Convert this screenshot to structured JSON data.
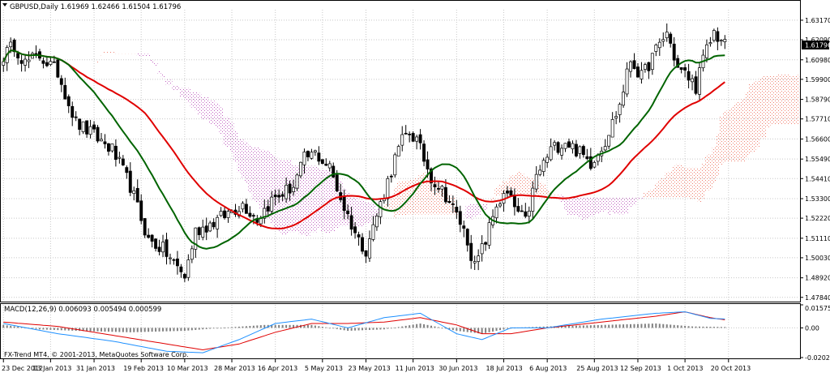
{
  "header": {
    "symbol_line": "GBPUSD,Daily  1.61969 1.62466 1.61504 1.61796"
  },
  "macd": {
    "label": "MACD(12,26,9) 0.006093 0.005494 0.000599"
  },
  "copyright": "FX-Trend MT4, © 2001-2013, MetaQuotes Software Corp.",
  "chart_data": [
    {
      "type": "line",
      "subtype": "candlestick",
      "symbol": "GBPUSD",
      "timeframe": "Daily",
      "ohlc_last": {
        "open": 1.61969,
        "high": 1.62466,
        "low": 1.61504,
        "close": 1.61796
      },
      "current_price_label": "1.61796",
      "y_ticks": [
        "1.63170",
        "1.62090",
        "1.60980",
        "1.59900",
        "1.58790",
        "1.57710",
        "1.56600",
        "1.55490",
        "1.54410",
        "1.53300",
        "1.52220",
        "1.51110",
        "1.50030",
        "1.48920",
        "1.47840"
      ],
      "ylim": [
        1.4765,
        1.6375
      ],
      "x_ticks": [
        "23 Dec 2012",
        "13 Jan 2013",
        "31 Jan 2013",
        "19 Feb 2013",
        "10 Mar 2013",
        "28 Mar 2013",
        "16 Apr 2013",
        "5 May 2013",
        "23 May 2013",
        "11 Jun 2013",
        "30 Jun 2013",
        "18 Jul 2013",
        "6 Aug 2013",
        "25 Aug 2013",
        "12 Sep 2013",
        "1 Oct 2013",
        "20 Oct 2013"
      ],
      "bar_count": 220,
      "price_anchors": [
        [
          0,
          1.612
        ],
        [
          3,
          1.618
        ],
        [
          6,
          1.608
        ],
        [
          10,
          1.612
        ],
        [
          15,
          1.603
        ],
        [
          20,
          1.575
        ],
        [
          25,
          1.568
        ],
        [
          30,
          1.56
        ],
        [
          35,
          1.54
        ],
        [
          40,
          1.51
        ],
        [
          44,
          1.505
        ],
        [
          48,
          1.495
        ],
        [
          50,
          1.49
        ],
        [
          53,
          1.515
        ],
        [
          58,
          1.52
        ],
        [
          62,
          1.525
        ],
        [
          66,
          1.53
        ],
        [
          70,
          1.522
        ],
        [
          74,
          1.532
        ],
        [
          80,
          1.54
        ],
        [
          83,
          1.555
        ],
        [
          86,
          1.558
        ],
        [
          90,
          1.55
        ],
        [
          94,
          1.528
        ],
        [
          98,
          1.51
        ],
        [
          100,
          1.505
        ],
        [
          104,
          1.53
        ],
        [
          108,
          1.555
        ],
        [
          110,
          1.565
        ],
        [
          112,
          1.57
        ],
        [
          114,
          1.565
        ],
        [
          118,
          1.545
        ],
        [
          122,
          1.535
        ],
        [
          126,
          1.52
        ],
        [
          128,
          1.51
        ],
        [
          130,
          1.495
        ],
        [
          133,
          1.51
        ],
        [
          136,
          1.53
        ],
        [
          139,
          1.535
        ],
        [
          142,
          1.525
        ],
        [
          144,
          1.52
        ],
        [
          147,
          1.545
        ],
        [
          151,
          1.56
        ],
        [
          155,
          1.565
        ],
        [
          158,
          1.56
        ],
        [
          162,
          1.553
        ],
        [
          166,
          1.565
        ],
        [
          170,
          1.585
        ],
        [
          173,
          1.61
        ],
        [
          176,
          1.6
        ],
        [
          180,
          1.615
        ],
        [
          183,
          1.625
        ],
        [
          186,
          1.605
        ],
        [
          189,
          1.6
        ],
        [
          191,
          1.595
        ],
        [
          193,
          1.61
        ],
        [
          196,
          1.625
        ],
        [
          199,
          1.618
        ]
      ],
      "indicators": [
        {
          "name": "ma_red",
          "color": "#e00000"
        },
        {
          "name": "ma_green",
          "color": "#006400"
        },
        {
          "name": "ichimoku_bull_cloud",
          "color": "#f08070"
        },
        {
          "name": "ichimoku_bear_cloud",
          "color": "#c060c0"
        }
      ]
    },
    {
      "type": "line",
      "subtype": "macd",
      "params": [
        12,
        26,
        9
      ],
      "values": {
        "macd": 0.006093,
        "signal": 0.005494,
        "histogram": 0.000599
      },
      "y_ticks": [
        "0.015758",
        "0.00",
        "-0.020277"
      ],
      "ylim": [
        -0.020277,
        0.015758
      ],
      "series": [
        {
          "name": "MACD",
          "color": "#1e90ff"
        },
        {
          "name": "Signal",
          "color": "#e00000"
        },
        {
          "name": "Histogram",
          "color": "#808080"
        }
      ],
      "hist_anchors": [
        [
          0,
          0.002
        ],
        [
          10,
          -0.001
        ],
        [
          20,
          -0.002
        ],
        [
          35,
          -0.003
        ],
        [
          50,
          -0.002
        ],
        [
          60,
          0.0
        ],
        [
          72,
          0.002
        ],
        [
          85,
          0.002
        ],
        [
          95,
          -0.002
        ],
        [
          105,
          -0.001
        ],
        [
          115,
          0.003
        ],
        [
          125,
          -0.002
        ],
        [
          132,
          -0.004
        ],
        [
          140,
          0.0
        ],
        [
          150,
          0.001
        ],
        [
          165,
          0.002
        ],
        [
          180,
          0.003
        ],
        [
          190,
          0.001
        ],
        [
          199,
          0.0006
        ]
      ],
      "macd_anchors": [
        [
          0,
          0.003
        ],
        [
          15,
          -0.004
        ],
        [
          30,
          -0.009
        ],
        [
          45,
          -0.016
        ],
        [
          55,
          -0.017
        ],
        [
          65,
          -0.008
        ],
        [
          75,
          0.003
        ],
        [
          85,
          0.006
        ],
        [
          95,
          0.0
        ],
        [
          105,
          0.007
        ],
        [
          115,
          0.01
        ],
        [
          125,
          -0.004
        ],
        [
          132,
          -0.008
        ],
        [
          140,
          0.0
        ],
        [
          150,
          0.0
        ],
        [
          165,
          0.006
        ],
        [
          180,
          0.01
        ],
        [
          188,
          0.011
        ],
        [
          195,
          0.0065
        ],
        [
          199,
          0.0061
        ]
      ],
      "signal_anchors": [
        [
          0,
          0.004
        ],
        [
          15,
          0.001
        ],
        [
          30,
          -0.005
        ],
        [
          45,
          -0.011
        ],
        [
          55,
          -0.015
        ],
        [
          65,
          -0.011
        ],
        [
          75,
          -0.003
        ],
        [
          85,
          0.003
        ],
        [
          95,
          0.003
        ],
        [
          105,
          0.004
        ],
        [
          115,
          0.007
        ],
        [
          125,
          0.002
        ],
        [
          132,
          -0.004
        ],
        [
          140,
          -0.004
        ],
        [
          150,
          0.0
        ],
        [
          165,
          0.004
        ],
        [
          180,
          0.008
        ],
        [
          188,
          0.011
        ],
        [
          195,
          0.007
        ],
        [
          199,
          0.0055
        ]
      ]
    }
  ]
}
